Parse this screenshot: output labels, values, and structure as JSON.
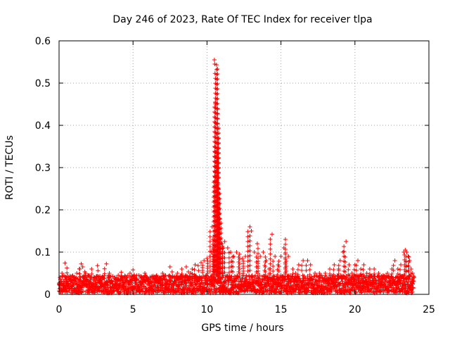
{
  "chart_data": {
    "type": "scatter",
    "title": "Day 246 of 2023, Rate Of TEC Index for receiver tlpa",
    "xlabel": "GPS time / hours",
    "ylabel": "ROTI / TECUs",
    "xlim": [
      0,
      25
    ],
    "ylim": [
      0,
      0.6
    ],
    "xticks": [
      0,
      5,
      10,
      15,
      20,
      25
    ],
    "xtick_labels": [
      "0",
      "5",
      "10",
      "15",
      "20",
      "25"
    ],
    "yticks": [
      0,
      0.1,
      0.2,
      0.3,
      0.4,
      0.5,
      0.6
    ],
    "ytick_labels": [
      "0",
      "0.1",
      "0.2",
      "0.3",
      "0.4",
      "0.5",
      "0.6"
    ],
    "grid": true,
    "marker": "+",
    "series": [
      {
        "name": "ROTI",
        "color": "#ff0000",
        "points": [
          [
            0.1,
            0.03
          ],
          [
            0.2,
            0.05
          ],
          [
            0.3,
            0.02
          ],
          [
            0.4,
            0.074
          ],
          [
            0.5,
            0.04
          ],
          [
            0.6,
            0.025
          ],
          [
            0.8,
            0.035
          ],
          [
            1.0,
            0.04
          ],
          [
            1.2,
            0.05
          ],
          [
            1.4,
            0.06
          ],
          [
            1.5,
            0.072
          ],
          [
            1.6,
            0.065
          ],
          [
            1.8,
            0.05
          ],
          [
            2.0,
            0.045
          ],
          [
            2.2,
            0.06
          ],
          [
            2.4,
            0.04
          ],
          [
            2.6,
            0.068
          ],
          [
            2.8,
            0.035
          ],
          [
            3.0,
            0.04
          ],
          [
            3.2,
            0.072
          ],
          [
            3.4,
            0.05
          ],
          [
            3.6,
            0.03
          ],
          [
            3.8,
            0.025
          ],
          [
            4.0,
            0.045
          ],
          [
            4.2,
            0.052
          ],
          [
            4.4,
            0.04
          ],
          [
            4.6,
            0.03
          ],
          [
            4.8,
            0.05
          ],
          [
            5.0,
            0.058
          ],
          [
            5.2,
            0.035
          ],
          [
            5.4,
            0.045
          ],
          [
            5.6,
            0.04
          ],
          [
            5.8,
            0.05
          ],
          [
            6.0,
            0.035
          ],
          [
            6.2,
            0.03
          ],
          [
            6.4,
            0.04
          ],
          [
            6.6,
            0.045
          ],
          [
            6.8,
            0.04
          ],
          [
            7.0,
            0.05
          ],
          [
            7.2,
            0.045
          ],
          [
            7.5,
            0.065
          ],
          [
            7.8,
            0.04
          ],
          [
            8.0,
            0.05
          ],
          [
            8.3,
            0.06
          ],
          [
            8.6,
            0.065
          ],
          [
            8.9,
            0.05
          ],
          [
            9.0,
            0.06
          ],
          [
            9.2,
            0.07
          ],
          [
            9.4,
            0.068
          ],
          [
            9.6,
            0.075
          ],
          [
            9.8,
            0.08
          ],
          [
            10.0,
            0.085
          ],
          [
            10.2,
            0.09
          ],
          [
            10.3,
            0.1
          ],
          [
            10.35,
            0.16
          ],
          [
            10.4,
            0.13
          ],
          [
            10.45,
            0.11
          ],
          [
            10.5,
            0.555
          ],
          [
            10.52,
            0.545
          ],
          [
            10.54,
            0.523
          ],
          [
            10.56,
            0.455
          ],
          [
            10.58,
            0.45
          ],
          [
            10.6,
            0.405
          ],
          [
            10.62,
            0.38
          ],
          [
            10.64,
            0.36
          ],
          [
            10.66,
            0.34
          ],
          [
            10.68,
            0.315
          ],
          [
            10.7,
            0.3
          ],
          [
            10.72,
            0.28
          ],
          [
            10.74,
            0.26
          ],
          [
            10.76,
            0.25
          ],
          [
            10.78,
            0.21
          ],
          [
            10.8,
            0.2
          ],
          [
            10.82,
            0.19
          ],
          [
            10.85,
            0.18
          ],
          [
            10.9,
            0.13
          ],
          [
            11.0,
            0.12
          ],
          [
            11.1,
            0.11
          ],
          [
            11.2,
            0.125
          ],
          [
            11.4,
            0.11
          ],
          [
            11.6,
            0.1
          ],
          [
            11.8,
            0.09
          ],
          [
            12.0,
            0.1
          ],
          [
            12.2,
            0.095
          ],
          [
            12.4,
            0.085
          ],
          [
            12.6,
            0.09
          ],
          [
            12.9,
            0.16
          ],
          [
            13.0,
            0.15
          ],
          [
            13.2,
            0.1
          ],
          [
            13.4,
            0.12
          ],
          [
            13.6,
            0.09
          ],
          [
            13.8,
            0.1
          ],
          [
            14.0,
            0.08
          ],
          [
            14.2,
            0.06
          ],
          [
            14.4,
            0.142
          ],
          [
            14.6,
            0.09
          ],
          [
            14.8,
            0.07
          ],
          [
            15.0,
            0.09
          ],
          [
            15.2,
            0.11
          ],
          [
            15.3,
            0.13
          ],
          [
            15.5,
            0.09
          ],
          [
            15.8,
            0.06
          ],
          [
            16.0,
            0.05
          ],
          [
            16.2,
            0.07
          ],
          [
            16.5,
            0.08
          ],
          [
            16.8,
            0.08
          ],
          [
            17.0,
            0.07
          ],
          [
            17.3,
            0.05
          ],
          [
            17.6,
            0.05
          ],
          [
            18.0,
            0.05
          ],
          [
            18.3,
            0.06
          ],
          [
            18.6,
            0.07
          ],
          [
            18.9,
            0.06
          ],
          [
            19.0,
            0.08
          ],
          [
            19.2,
            0.1
          ],
          [
            19.4,
            0.125
          ],
          [
            19.6,
            0.07
          ],
          [
            19.8,
            0.05
          ],
          [
            20.0,
            0.07
          ],
          [
            20.2,
            0.08
          ],
          [
            20.4,
            0.06
          ],
          [
            20.6,
            0.07
          ],
          [
            20.8,
            0.05
          ],
          [
            21.0,
            0.06
          ],
          [
            21.3,
            0.06
          ],
          [
            21.6,
            0.05
          ],
          [
            21.9,
            0.045
          ],
          [
            22.2,
            0.05
          ],
          [
            22.5,
            0.06
          ],
          [
            22.7,
            0.08
          ],
          [
            22.9,
            0.06
          ],
          [
            23.1,
            0.07
          ],
          [
            23.3,
            0.1
          ],
          [
            23.4,
            0.105
          ],
          [
            23.5,
            0.1
          ],
          [
            23.6,
            0.09
          ],
          [
            23.7,
            0.08
          ],
          [
            23.8,
            0.06
          ],
          [
            23.9,
            0.05
          ],
          [
            24.0,
            0.04
          ]
        ],
        "floor_band": {
          "x_start": 0.0,
          "x_end": 24.0,
          "y_low": 0.003,
          "y_high": 0.045
        }
      }
    ]
  }
}
